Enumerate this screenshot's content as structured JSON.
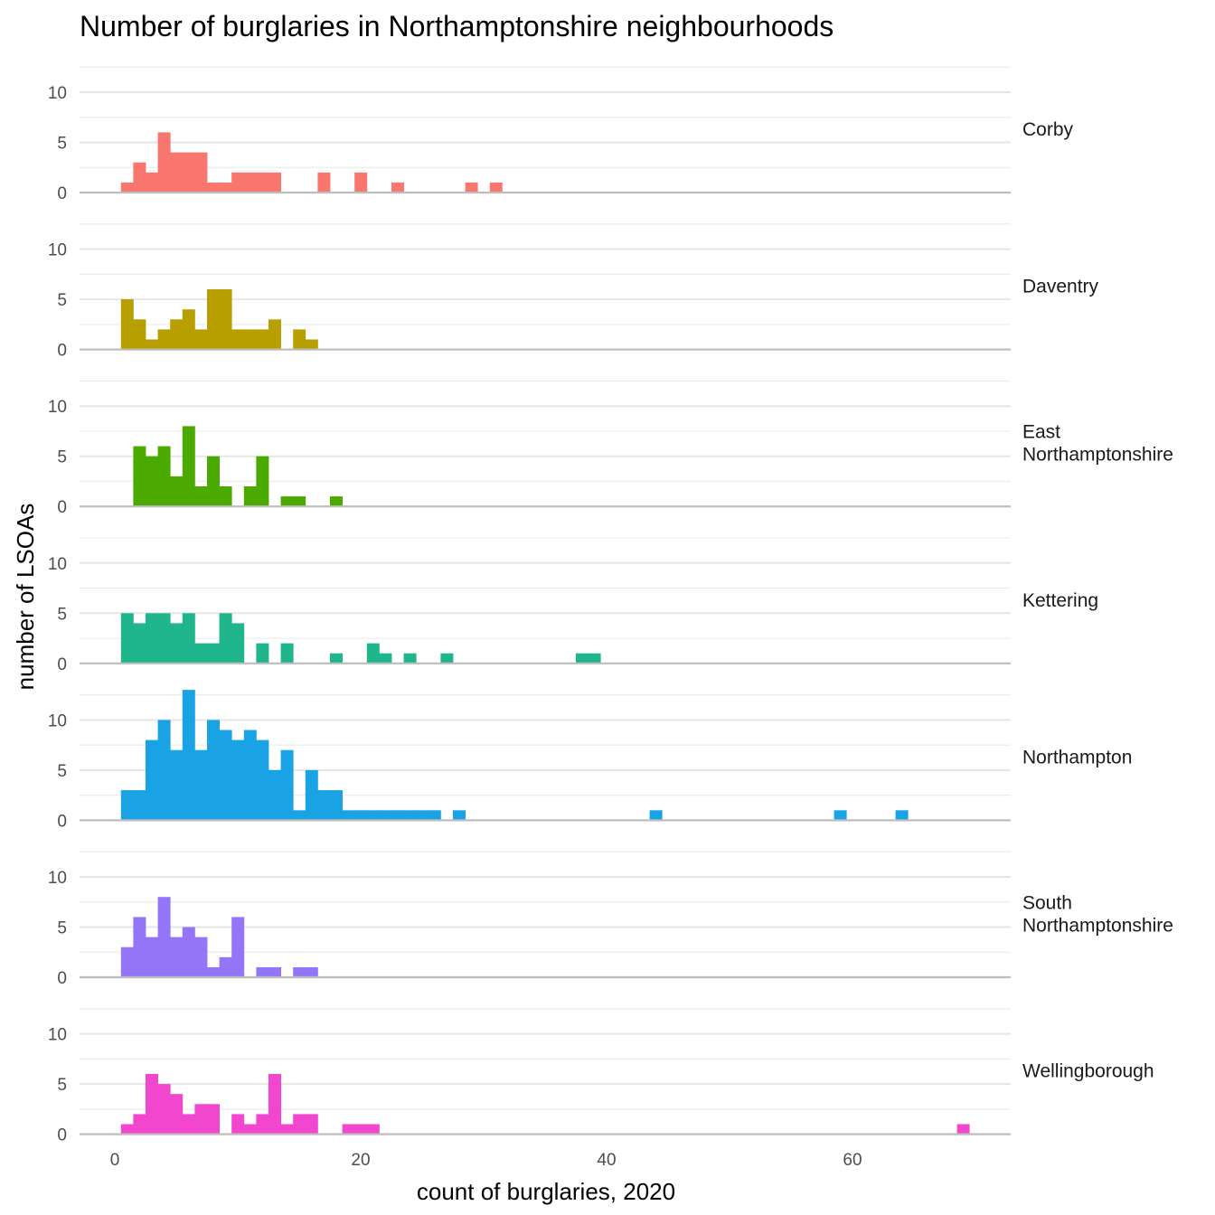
{
  "chart_data": {
    "type": "bar",
    "subtype": "faceted-histogram",
    "title": "Number of burglaries in Northamptonshire neighbourhoods",
    "xlabel": "count of burglaries, 2020",
    "ylabel": "number of LSOAs",
    "bin_width": 1,
    "xlim": [
      -2.5,
      73
    ],
    "x_ticks": [
      0,
      20,
      40,
      60
    ],
    "ylim": [
      0,
      13
    ],
    "y_ticks": [
      0,
      5,
      10
    ],
    "facets": [
      {
        "name": "Corby",
        "label_lines": [
          "Corby"
        ],
        "color": "#F8766D",
        "bins": [
          [
            1,
            1
          ],
          [
            2,
            3
          ],
          [
            3,
            2
          ],
          [
            4,
            6
          ],
          [
            5,
            4
          ],
          [
            6,
            4
          ],
          [
            7,
            4
          ],
          [
            8,
            1
          ],
          [
            9,
            1
          ],
          [
            10,
            2
          ],
          [
            11,
            2
          ],
          [
            12,
            2
          ],
          [
            13,
            2
          ],
          [
            17,
            2
          ],
          [
            20,
            2
          ],
          [
            23,
            1
          ],
          [
            29,
            1
          ],
          [
            31,
            1
          ]
        ]
      },
      {
        "name": "Daventry",
        "label_lines": [
          "Daventry"
        ],
        "color": "#B79F00",
        "bins": [
          [
            1,
            5
          ],
          [
            2,
            3
          ],
          [
            3,
            1
          ],
          [
            4,
            2
          ],
          [
            5,
            3
          ],
          [
            6,
            4
          ],
          [
            7,
            2
          ],
          [
            8,
            6
          ],
          [
            9,
            6
          ],
          [
            10,
            2
          ],
          [
            11,
            2
          ],
          [
            12,
            2
          ],
          [
            13,
            3
          ],
          [
            15,
            2
          ],
          [
            16,
            1
          ]
        ]
      },
      {
        "name": "East Northamptonshire",
        "label_lines": [
          "East",
          "Northamptonshire"
        ],
        "color": "#4BAA00",
        "bins": [
          [
            2,
            6
          ],
          [
            3,
            5
          ],
          [
            4,
            6
          ],
          [
            5,
            3
          ],
          [
            6,
            8
          ],
          [
            7,
            2
          ],
          [
            8,
            5
          ],
          [
            9,
            2
          ],
          [
            11,
            2
          ],
          [
            12,
            5
          ],
          [
            14,
            1
          ],
          [
            15,
            1
          ],
          [
            18,
            1
          ]
        ]
      },
      {
        "name": "Kettering",
        "label_lines": [
          "Kettering"
        ],
        "color": "#1FB58D",
        "bins": [
          [
            1,
            5
          ],
          [
            2,
            4
          ],
          [
            3,
            5
          ],
          [
            4,
            5
          ],
          [
            5,
            4
          ],
          [
            6,
            5
          ],
          [
            7,
            2
          ],
          [
            8,
            2
          ],
          [
            9,
            5
          ],
          [
            10,
            4
          ],
          [
            12,
            2
          ],
          [
            14,
            2
          ],
          [
            18,
            1
          ],
          [
            21,
            2
          ],
          [
            22,
            1
          ],
          [
            24,
            1
          ],
          [
            27,
            1
          ],
          [
            38,
            1
          ],
          [
            39,
            1
          ]
        ]
      },
      {
        "name": "Northampton",
        "label_lines": [
          "Northampton"
        ],
        "color": "#1AA3E4",
        "bins": [
          [
            1,
            3
          ],
          [
            2,
            3
          ],
          [
            3,
            8
          ],
          [
            4,
            10
          ],
          [
            5,
            7
          ],
          [
            6,
            13
          ],
          [
            7,
            7
          ],
          [
            8,
            10
          ],
          [
            9,
            9
          ],
          [
            10,
            8
          ],
          [
            11,
            9
          ],
          [
            12,
            8
          ],
          [
            13,
            5
          ],
          [
            14,
            7
          ],
          [
            15,
            1
          ],
          [
            16,
            5
          ],
          [
            17,
            3
          ],
          [
            18,
            3
          ],
          [
            19,
            1
          ],
          [
            20,
            1
          ],
          [
            21,
            1
          ],
          [
            22,
            1
          ],
          [
            23,
            1
          ],
          [
            24,
            1
          ],
          [
            25,
            1
          ],
          [
            26,
            1
          ],
          [
            28,
            1
          ],
          [
            44,
            1
          ],
          [
            59,
            1
          ],
          [
            64,
            1
          ]
        ]
      },
      {
        "name": "South Northamptonshire",
        "label_lines": [
          "South",
          "Northamptonshire"
        ],
        "color": "#9474F7",
        "bins": [
          [
            1,
            3
          ],
          [
            2,
            6
          ],
          [
            3,
            4
          ],
          [
            4,
            8
          ],
          [
            5,
            4
          ],
          [
            6,
            5
          ],
          [
            7,
            4
          ],
          [
            8,
            1
          ],
          [
            9,
            2
          ],
          [
            10,
            6
          ],
          [
            12,
            1
          ],
          [
            13,
            1
          ],
          [
            15,
            1
          ],
          [
            16,
            1
          ]
        ]
      },
      {
        "name": "Wellingborough",
        "label_lines": [
          "Wellingborough"
        ],
        "color": "#F246CF",
        "bins": [
          [
            1,
            1
          ],
          [
            2,
            2
          ],
          [
            3,
            6
          ],
          [
            4,
            5
          ],
          [
            5,
            4
          ],
          [
            6,
            2
          ],
          [
            7,
            3
          ],
          [
            8,
            3
          ],
          [
            10,
            2
          ],
          [
            11,
            1
          ],
          [
            12,
            2
          ],
          [
            13,
            6
          ],
          [
            14,
            1
          ],
          [
            15,
            2
          ],
          [
            16,
            2
          ],
          [
            19,
            1
          ],
          [
            20,
            1
          ],
          [
            21,
            1
          ],
          [
            69,
            1
          ]
        ]
      }
    ]
  }
}
